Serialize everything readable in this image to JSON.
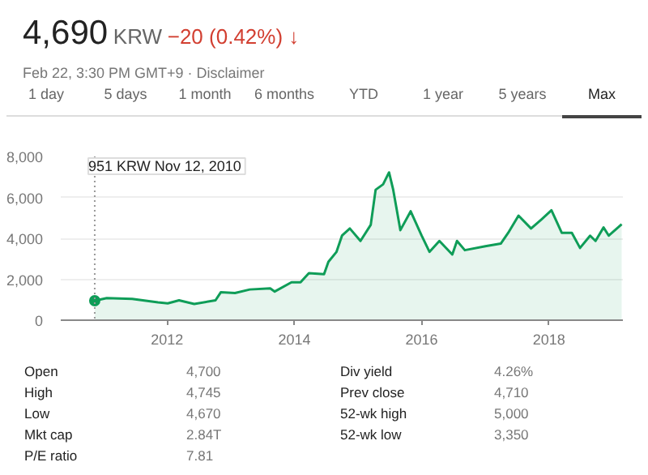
{
  "chart_data": {
    "type": "area",
    "title": "4,690",
    "subtitle": "Feb 22, 3:30 PM GMT+9 · Disclaimer",
    "annotations": [
      "KRW",
      "−20 (0.42%) ↓",
      "1 day",
      "5 days",
      "1 month",
      "6 months",
      "YTD",
      "1 year",
      "5 years",
      "Max",
      "951 KRW  Nov 12, 2010",
      "Open",
      "4,700",
      "High",
      "4,745",
      "Low",
      "4,670",
      "Mkt cap",
      "2.84T",
      "P/E ratio",
      "7.81",
      "Div yield",
      "4.26%",
      "Prev close",
      "4,710",
      "52-wk high",
      "5,000",
      "52-wk low",
      "3,350"
    ],
    "x": [
      "2010-11-12",
      "2011-01-20",
      "2011-06-15",
      "2011-11-10",
      "2012-01-05",
      "2012-03-10",
      "2012-06-05",
      "2012-10-05",
      "2012-11-05",
      "2013-01-25",
      "2013-04-20",
      "2013-08-15",
      "2013-09-10",
      "2013-12-15",
      "2014-02-05",
      "2014-03-25",
      "2014-06-20",
      "2014-07-15",
      "2014-08-30",
      "2014-10-01",
      "2014-11-15",
      "2015-01-15",
      "2015-03-15",
      "2015-04-12",
      "2015-05-25",
      "2015-06-28",
      "2015-07-22",
      "2015-09-01",
      "2015-10-30",
      "2016-01-01",
      "2016-02-15",
      "2016-04-12",
      "2016-06-25",
      "2016-07-22",
      "2016-09-05",
      "2017-01-01",
      "2017-03-30",
      "2017-05-12",
      "2017-07-10",
      "2017-09-20",
      "2017-11-18",
      "2018-01-15",
      "2018-03-15",
      "2018-05-12",
      "2018-06-28",
      "2018-08-25",
      "2018-09-25",
      "2018-11-10",
      "2018-12-10",
      "2019-02-22"
    ],
    "values": [
      951,
      1080,
      1040,
      870,
      820,
      970,
      790,
      970,
      1370,
      1330,
      1500,
      1550,
      1400,
      1850,
      1850,
      2300,
      2250,
      2850,
      3330,
      4130,
      4480,
      3870,
      4660,
      6370,
      6640,
      7220,
      6370,
      4400,
      5320,
      4130,
      3340,
      3870,
      3210,
      3870,
      3420,
      3610,
      3740,
      4270,
      5110,
      4480,
      4920,
      5370,
      4270,
      4270,
      3530,
      4130,
      3870,
      4530,
      4130,
      4690
    ],
    "color": "#0f9d58",
    "xlim": [
      "2010-05-01",
      "2019-03-01"
    ],
    "xticks": [
      {
        "value": "2012-01-01",
        "label": "2012"
      },
      {
        "value": "2014-01-01",
        "label": "2014"
      },
      {
        "value": "2016-01-01",
        "label": "2016"
      },
      {
        "value": "2018-01-01",
        "label": "2018"
      }
    ],
    "ylim": [
      0,
      8000
    ],
    "yticks": [
      {
        "value": 0,
        "label": "0"
      },
      {
        "value": 2000,
        "label": "2,000"
      },
      {
        "value": 4000,
        "label": "4,000"
      },
      {
        "value": 6000,
        "label": "6,000"
      },
      {
        "value": 8000,
        "label": "8,000"
      }
    ],
    "ref_lines": [
      {
        "axis": "x",
        "value": "2010-11-12",
        "color": "#999999",
        "line_style": "dotted"
      }
    ],
    "grid": "y"
  }
}
